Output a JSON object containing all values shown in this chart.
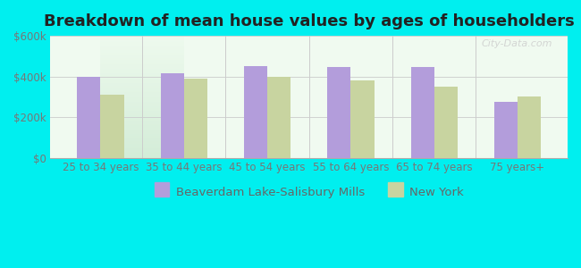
{
  "title": "Breakdown of mean house values by ages of householders",
  "categories": [
    "25 to 34 years",
    "35 to 44 years",
    "45 to 54 years",
    "55 to 64 years",
    "65 to 74 years",
    "75 years+"
  ],
  "beaverdam_values": [
    400000,
    415000,
    450000,
    448000,
    445000,
    275000
  ],
  "newyork_values": [
    310000,
    390000,
    400000,
    382000,
    348000,
    300000
  ],
  "bar_color_beaverdam": "#b39ddb",
  "bar_color_newyork": "#c8d4a0",
  "background_color": "#00efef",
  "ylim": [
    0,
    600000
  ],
  "yticks": [
    0,
    200000,
    400000,
    600000
  ],
  "ytick_labels": [
    "$0",
    "$200k",
    "$400k",
    "$600k"
  ],
  "legend_labels": [
    "Beaverdam Lake-Salisbury Mills",
    "New York"
  ],
  "bar_width": 0.28,
  "title_fontsize": 13,
  "tick_fontsize": 8.5,
  "legend_fontsize": 9.5,
  "separator_color": "#aaaaaa",
  "watermark_text": "City-Data.com"
}
